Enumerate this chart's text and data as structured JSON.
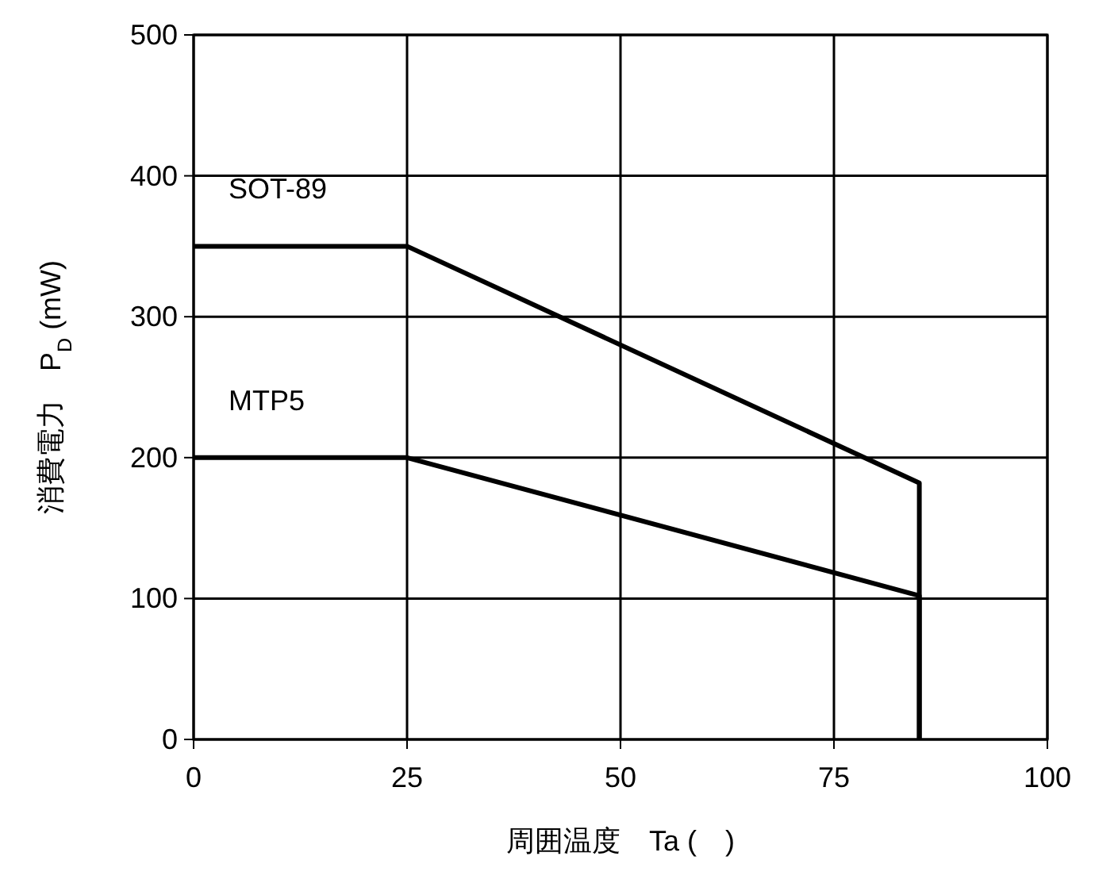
{
  "chart_data": {
    "type": "line",
    "xlabel": "周囲温度　Ta (　)",
    "ylabel": "消費電力　P$_{D}$ (mW)",
    "xlim": [
      0,
      100
    ],
    "xticks": [
      0,
      25,
      50,
      75,
      100
    ],
    "ylim": [
      0,
      500
    ],
    "yticks": [
      0,
      100,
      200,
      300,
      400,
      500
    ],
    "grid": true,
    "marker": "none",
    "line_style": "solid",
    "series": [
      {
        "name": "SOT-89",
        "color": "#000000",
        "x": [
          0,
          25,
          85,
          85
        ],
        "values": [
          350,
          350,
          182,
          0
        ]
      },
      {
        "name": "MTP5",
        "color": "#000000",
        "x": [
          0,
          25,
          85,
          85
        ],
        "values": [
          200,
          200,
          102,
          0
        ]
      }
    ]
  }
}
